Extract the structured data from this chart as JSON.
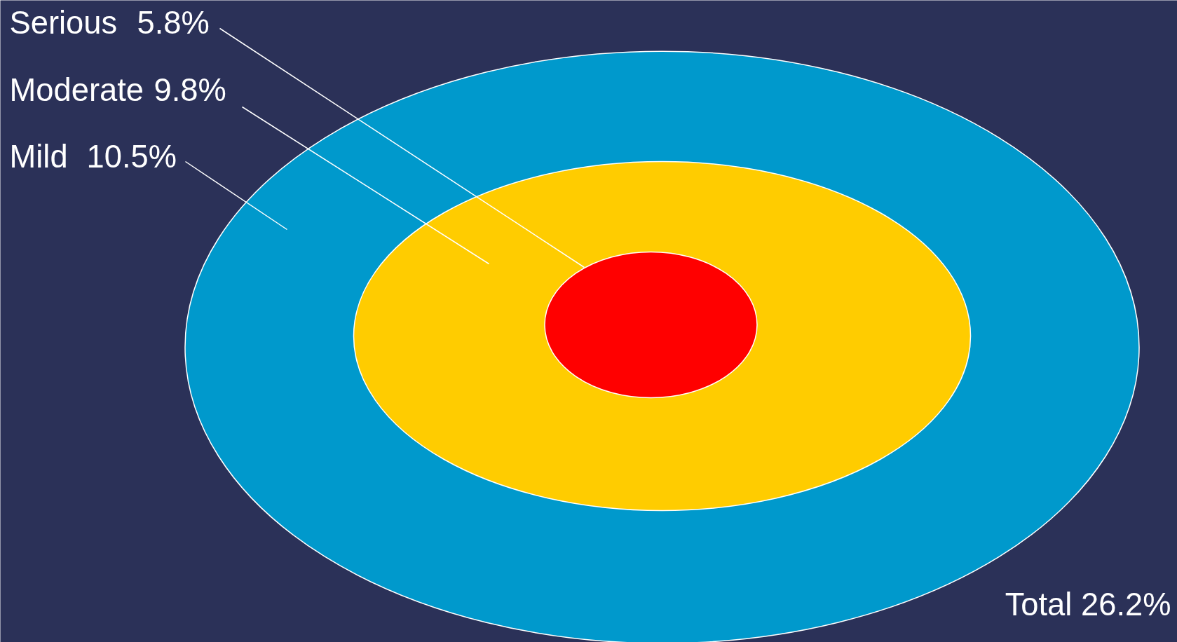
{
  "chart_data": {
    "type": "other",
    "categories": [
      "Serious",
      "Moderate",
      "Mild"
    ],
    "values": [
      5.8,
      9.8,
      10.5
    ],
    "value_labels": [
      "5.8%",
      "9.8%",
      "10.5%"
    ],
    "colors": [
      "#ff0000",
      "#ffcc00",
      "#0099cc"
    ],
    "annotations": [
      "Total 26.2%"
    ]
  }
}
